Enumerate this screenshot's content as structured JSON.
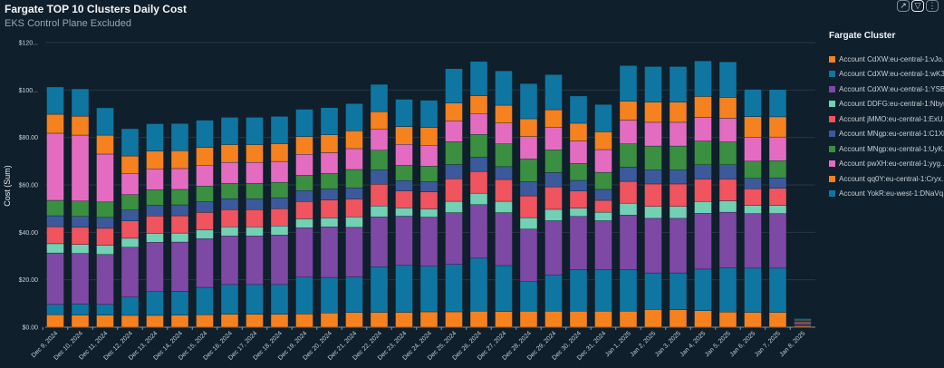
{
  "header": {
    "title": "Fargate TOP 10 Clusters Daily Cost",
    "subtitle": "EKS Control Plane Excluded"
  },
  "toolbar": {
    "expand_icon": "↗",
    "filter_icon": "▽",
    "more_icon": "⋮"
  },
  "chart_data": {
    "type": "bar",
    "stacked": true,
    "title": "Fargate TOP 10 Clusters Daily Cost",
    "subtitle": "EKS Control Plane Excluded",
    "xlabel": "",
    "ylabel": "Cost (Sum)",
    "ylim": [
      0,
      120
    ],
    "yticks": [
      0,
      20,
      40,
      60,
      80,
      100,
      120
    ],
    "ytick_labels": [
      "$0.00",
      "$20.00",
      "$40.00",
      "$60.00",
      "$80.00",
      "$100...",
      "$120..."
    ],
    "grid": true,
    "legend_title": "Fargate Cluster",
    "legend_position": "right",
    "categories": [
      "Dec 9, 2024",
      "Dec 10, 2024",
      "Dec 11, 2024",
      "Dec 12, 2024",
      "Dec 13, 2024",
      "Dec 14, 2024",
      "Dec 15, 2024",
      "Dec 16, 2024",
      "Dec 17, 2024",
      "Dec 18, 2024",
      "Dec 19, 2024",
      "Dec 20, 2024",
      "Dec 21, 2024",
      "Dec 22, 2024",
      "Dec 23, 2024",
      "Dec 24, 2024",
      "Dec 25, 2024",
      "Dec 26, 2024",
      "Dec 27, 2024",
      "Dec 28, 2024",
      "Dec 29, 2024",
      "Dec 30, 2024",
      "Dec 31, 2024",
      "Jan 1, 2025",
      "Jan 2, 2025",
      "Jan 3, 2025",
      "Jan 4, 2025",
      "Jan 5, 2025",
      "Jan 6, 2025",
      "Jan 7, 2025",
      "Jan 8, 2025"
    ],
    "series": [
      {
        "name": "Account qq0Y:eu-central-1:Cryx...",
        "color": "#f5811f",
        "values": [
          5.3,
          5.1,
          5.1,
          5.0,
          5.0,
          5.1,
          5.3,
          5.5,
          5.5,
          5.5,
          5.6,
          6.0,
          6.2,
          6.3,
          6.3,
          6.5,
          6.5,
          6.8,
          6.6,
          6.8,
          6.8,
          6.8,
          6.8,
          6.8,
          7.5,
          7.4,
          7.0,
          6.4,
          6.3,
          6.3,
          0.5
        ]
      },
      {
        "name": "Account YokR:eu-west-1:DNaVq...",
        "color": "#0f76a2",
        "values": [
          4.3,
          4.7,
          4.5,
          7.7,
          10.0,
          10.0,
          11.5,
          12.5,
          12.5,
          12.5,
          15.5,
          15.0,
          15.0,
          19.2,
          19.8,
          19.2,
          20.0,
          22.3,
          19.4,
          12.4,
          15.3,
          17.5,
          17.5,
          17.5,
          15.4,
          15.5,
          17.5,
          18.6,
          18.6,
          18.6,
          0.5
        ]
      },
      {
        "name": "Account CdXW:eu-central-1:YSB...",
        "color": "#7d49a4",
        "values": [
          21.7,
          21.3,
          21.1,
          21.0,
          20.8,
          20.8,
          20.5,
          20.5,
          20.5,
          20.9,
          20.8,
          21.3,
          20.9,
          21.0,
          20.7,
          20.7,
          21.8,
          22.6,
          22.3,
          22.2,
          22.8,
          22.4,
          20.6,
          23.0,
          23.0,
          23.0,
          23.5,
          23.5,
          23.0,
          23.0,
          0.5
        ]
      },
      {
        "name": "Account DDFG:eu-central-1:Nbyr...",
        "color": "#72d0b4",
        "values": [
          3.9,
          3.8,
          3.8,
          3.8,
          3.8,
          3.8,
          3.8,
          3.8,
          3.8,
          3.8,
          3.8,
          3.8,
          4.4,
          4.6,
          3.5,
          3.5,
          4.8,
          4.8,
          4.8,
          4.8,
          4.8,
          3.5,
          3.6,
          5.0,
          5.0,
          5.0,
          5.0,
          4.8,
          3.5,
          3.5,
          0.4
        ]
      },
      {
        "name": "Account jMMO:eu-central-1:ExU...",
        "color": "#f0545f",
        "values": [
          7.2,
          7.2,
          7.2,
          7.3,
          7.3,
          7.3,
          7.3,
          7.3,
          7.3,
          7.3,
          7.3,
          7.6,
          7.6,
          9.2,
          7.2,
          7.2,
          9.5,
          9.2,
          9.2,
          9.2,
          9.5,
          7.2,
          5.0,
          9.2,
          9.5,
          9.5,
          9.5,
          9.2,
          7.0,
          7.2,
          0.4
        ]
      },
      {
        "name": "Account MNgp:eu-central-1:C1Xl...",
        "color": "#3c5a9b",
        "values": [
          4.6,
          4.6,
          4.6,
          4.6,
          4.6,
          4.6,
          4.6,
          4.6,
          4.6,
          4.6,
          4.6,
          4.6,
          4.6,
          6.0,
          4.3,
          4.3,
          6.0,
          6.0,
          5.4,
          6.0,
          6.0,
          4.5,
          4.6,
          6.0,
          6.0,
          6.0,
          6.0,
          6.0,
          4.4,
          4.4,
          0.3
        ]
      },
      {
        "name": "Account MNgp:eu-central-1:UyK...",
        "color": "#3a8f41",
        "values": [
          6.5,
          6.5,
          6.5,
          6.5,
          6.5,
          6.5,
          6.5,
          6.5,
          6.5,
          6.5,
          6.5,
          6.5,
          7.8,
          8.3,
          6.5,
          6.5,
          9.6,
          9.6,
          9.6,
          9.6,
          9.6,
          7.2,
          7.2,
          9.8,
          10.0,
          10.0,
          10.0,
          9.6,
          7.2,
          7.2,
          0.3
        ]
      },
      {
        "name": "Account pwXH:eu-central-1:yyg...",
        "color": "#e36cc1",
        "values": [
          28.3,
          27.8,
          20.2,
          8.8,
          8.8,
          8.8,
          8.8,
          8.8,
          8.8,
          8.8,
          8.8,
          8.8,
          8.8,
          8.8,
          8.8,
          8.8,
          8.8,
          8.8,
          8.8,
          9.4,
          9.4,
          9.4,
          9.6,
          10.0,
          10.0,
          10.0,
          10.0,
          10.0,
          10.0,
          10.0,
          0.3
        ]
      },
      {
        "name": "Account CdXW:eu-central-1:vJo...",
        "color": "#f5811f",
        "values": [
          8.0,
          8.0,
          8.0,
          7.5,
          7.5,
          7.5,
          7.5,
          7.5,
          7.5,
          7.5,
          7.5,
          7.5,
          7.5,
          7.5,
          7.5,
          7.5,
          7.5,
          7.5,
          7.5,
          7.5,
          7.5,
          7.5,
          7.5,
          8.0,
          8.5,
          8.5,
          8.8,
          8.8,
          8.8,
          8.5,
          0.3
        ]
      },
      {
        "name": "Account CdXW:eu-central-1:wK3...",
        "color": "#0f76a2",
        "values": [
          11.5,
          11.5,
          11.5,
          11.5,
          11.5,
          11.5,
          11.5,
          11.5,
          11.5,
          11.5,
          11.5,
          11.5,
          11.5,
          11.5,
          11.5,
          11.5,
          14.5,
          14.5,
          14.5,
          14.8,
          14.8,
          11.5,
          11.5,
          15.0,
          15.0,
          15.0,
          15.0,
          15.0,
          11.5,
          11.5,
          0.3
        ]
      }
    ]
  },
  "legend": {
    "title": "Fargate Cluster",
    "items": [
      {
        "label": "Account CdXW:eu-central-1:vJo...",
        "color": "#f5811f"
      },
      {
        "label": "Account CdXW:eu-central-1:wK3...",
        "color": "#0f76a2"
      },
      {
        "label": "Account CdXW:eu-central-1:YSB...",
        "color": "#7d49a4"
      },
      {
        "label": "Account DDFG:eu-central-1:Nbyr...",
        "color": "#72d0b4"
      },
      {
        "label": "Account jMMO:eu-central-1:ExU...",
        "color": "#f0545f"
      },
      {
        "label": "Account MNgp:eu-central-1:C1Xl...",
        "color": "#3c5a9b"
      },
      {
        "label": "Account MNgp:eu-central-1:UyK...",
        "color": "#3a8f41"
      },
      {
        "label": "Account pwXH:eu-central-1:yyg...",
        "color": "#e36cc1"
      },
      {
        "label": "Account qq0Y:eu-central-1:Cryx...",
        "color": "#f5811f"
      },
      {
        "label": "Account YokR:eu-west-1:DNaVq...",
        "color": "#0f76a2"
      }
    ]
  }
}
